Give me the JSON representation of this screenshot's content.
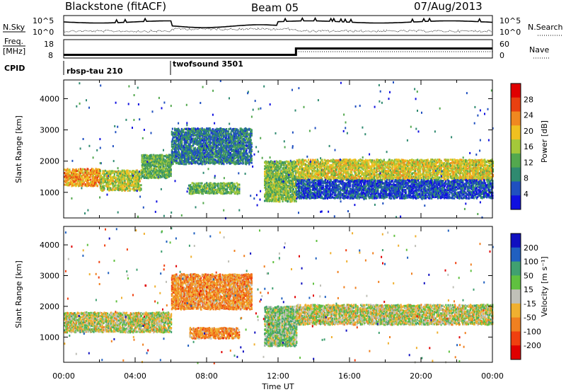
{
  "header": {
    "station": "Blackstone (fitACF)",
    "beam": "Beam 05",
    "date": "07/Aug/2013"
  },
  "noise_panel": {
    "left_label": "N.Sky",
    "right_label": "N.Search",
    "tick_top": "10^5",
    "tick_bottom": "10^0"
  },
  "freq_panel": {
    "left_label_top": "Freq.",
    "left_label_bottom": "[MHz]",
    "left_ticks": [
      "18",
      "8"
    ],
    "right_label": "Nave",
    "right_ticks": [
      "60",
      "0"
    ],
    "freq_mhz": [
      {
        "t": 0,
        "v": 10.5
      },
      {
        "t": 13.0,
        "v": 10.5
      },
      {
        "t": 13.0,
        "v": 15.5
      },
      {
        "t": 24,
        "v": 15.5
      }
    ],
    "nave": [
      {
        "t": 0,
        "v": 17
      },
      {
        "t": 13.0,
        "v": 17
      },
      {
        "t": 13.0,
        "v": 30
      },
      {
        "t": 24,
        "v": 30
      }
    ]
  },
  "cpid_panel": {
    "label": "CPID",
    "segments": [
      {
        "name": "rbsp-tau 210",
        "start_hour": 0,
        "end_hour": 6
      },
      {
        "name": "twofsound 3501",
        "start_hour": 6,
        "end_hour": 24
      }
    ]
  },
  "colors": {
    "power": [
      "#1010e0",
      "#2050c0",
      "#2f8a70",
      "#53a84e",
      "#a4c83a",
      "#f0c020",
      "#f08820",
      "#e84010",
      "#e00000"
    ],
    "velocity": [
      "#e00000",
      "#f04010",
      "#f08020",
      "#f0b030",
      "#c0c0b8",
      "#60c040",
      "#40a070",
      "#2060c0",
      "#1010c0"
    ]
  },
  "chart_data": [
    {
      "type": "heatmap",
      "name": "power",
      "ylabel": "Slant Range [km]",
      "ylim": [
        180,
        4600
      ],
      "xlim": [
        0,
        24
      ],
      "yticks": [
        1000,
        2000,
        3000,
        4000
      ],
      "colorbar": {
        "label": "Power [dB]",
        "range": [
          0,
          32
        ],
        "ticks": [
          4,
          8,
          12,
          16,
          20,
          24,
          28
        ]
      },
      "echo_bands": [
        {
          "t0": 0.0,
          "t1": 2.0,
          "range_km": [
            1200,
            1750
          ],
          "mean": 22
        },
        {
          "t0": 2.0,
          "t1": 4.3,
          "range_km": [
            1050,
            1700
          ],
          "mean": 17
        },
        {
          "t0": 4.3,
          "t1": 6.0,
          "range_km": [
            1450,
            2200
          ],
          "mean": 13
        },
        {
          "t0": 6.0,
          "t1": 10.5,
          "range_km": [
            1900,
            3050
          ],
          "mean": 8
        },
        {
          "t0": 7.0,
          "t1": 9.8,
          "range_km": [
            950,
            1300
          ],
          "mean": 13
        },
        {
          "t0": 11.2,
          "t1": 13.0,
          "range_km": [
            700,
            2000
          ],
          "mean": 14
        },
        {
          "t0": 13.0,
          "t1": 24.0,
          "range_km": [
            1400,
            2050
          ],
          "mean": 18
        },
        {
          "t0": 13.0,
          "t1": 24.0,
          "range_km": [
            800,
            1400
          ],
          "mean": 5
        }
      ]
    },
    {
      "type": "heatmap",
      "name": "velocity",
      "ylabel": "Slant Range [km]",
      "xlabel": "Time UT",
      "ylim": [
        180,
        4600
      ],
      "xlim": [
        0,
        24
      ],
      "xticks": [
        "00:00",
        "04:00",
        "08:00",
        "12:00",
        "16:00",
        "20:00",
        "00:00"
      ],
      "yticks": [
        1000,
        2000,
        3000,
        4000
      ],
      "colorbar": {
        "label": "Velocity [m s⁻¹]",
        "ticks": [
          "200",
          "100",
          "50",
          "15",
          "-15",
          "-50",
          "-100",
          "-200"
        ]
      },
      "echo_bands": [
        {
          "t0": 0.0,
          "t1": 6.0,
          "range_km": [
            1150,
            1800
          ],
          "mean": 0
        },
        {
          "t0": 6.0,
          "t1": 10.5,
          "range_km": [
            1900,
            3050
          ],
          "mean": -60
        },
        {
          "t0": 7.0,
          "t1": 9.8,
          "range_km": [
            950,
            1300
          ],
          "mean": -60
        },
        {
          "t0": 11.2,
          "t1": 13.0,
          "range_km": [
            700,
            2000
          ],
          "mean": 30
        },
        {
          "t0": 13.0,
          "t1": 24.0,
          "range_km": [
            1400,
            2050
          ],
          "mean": 0
        }
      ]
    }
  ]
}
